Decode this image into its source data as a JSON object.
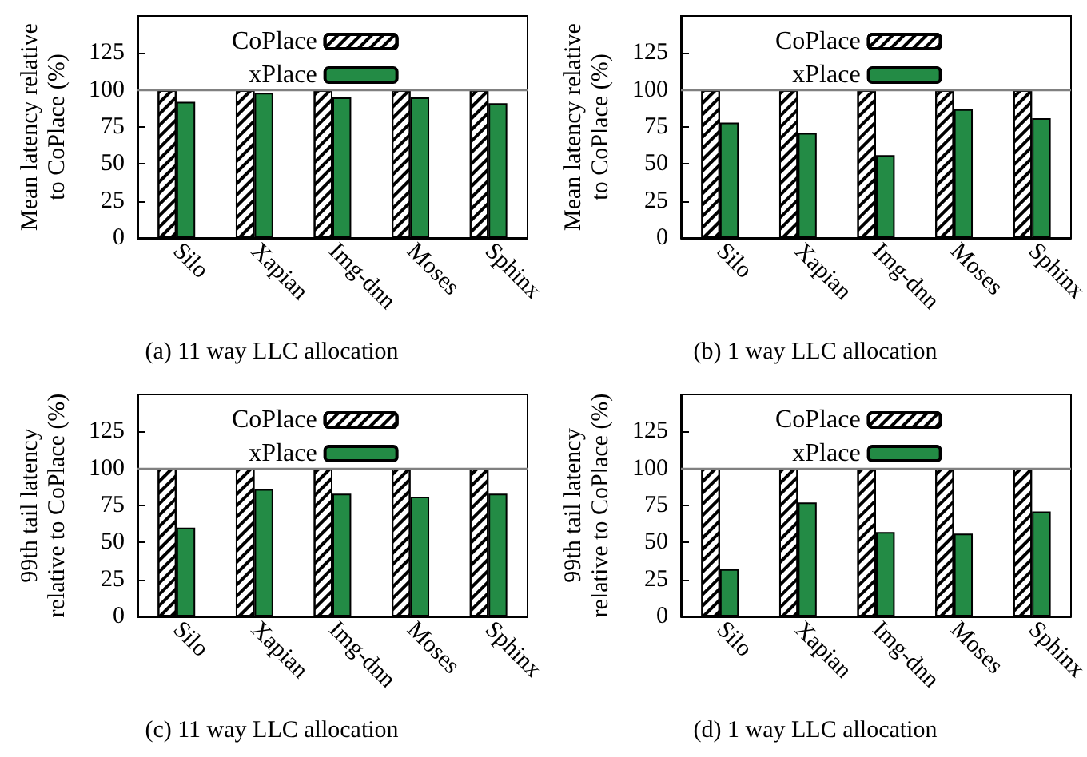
{
  "chart_data": [
    {
      "type": "bar",
      "title": "(a) 11 way LLC allocation",
      "ylabel": "Mean latency relative to CoPlace (%)",
      "categories": [
        "Silo",
        "Xapian",
        "Img-dnn",
        "Moses",
        "Sphinx"
      ],
      "series": [
        {
          "name": "CoPlace",
          "color": "#ffffff",
          "values": [
            100,
            100,
            100,
            100,
            100
          ]
        },
        {
          "name": "xPlace",
          "color": "#238b45",
          "values": [
            92,
            98,
            95,
            95,
            91
          ]
        }
      ],
      "ylim": [
        0,
        150
      ],
      "yticks": [
        0,
        25,
        50,
        75,
        100,
        125
      ],
      "ref_lines": [
        {
          "axis": "y",
          "value": 100,
          "color": "#808080"
        }
      ],
      "legend": "top",
      "grid": false
    },
    {
      "type": "bar",
      "title": "(b) 1 way LLC allocation",
      "ylabel": "Mean latency relative to CoPlace (%)",
      "categories": [
        "Silo",
        "Xapian",
        "Img-dnn",
        "Moses",
        "Sphinx"
      ],
      "series": [
        {
          "name": "CoPlace",
          "color": "#ffffff",
          "values": [
            100,
            100,
            100,
            100,
            100
          ]
        },
        {
          "name": "xPlace",
          "color": "#238b45",
          "values": [
            78,
            71,
            56,
            87,
            81
          ]
        }
      ],
      "ylim": [
        0,
        150
      ],
      "yticks": [
        0,
        25,
        50,
        75,
        100,
        125
      ],
      "ref_lines": [
        {
          "axis": "y",
          "value": 100,
          "color": "#808080"
        }
      ],
      "legend": "top",
      "grid": false
    },
    {
      "type": "bar",
      "title": "(c) 11 way LLC allocation",
      "ylabel": "99th tail latency relative to CoPlace (%)",
      "categories": [
        "Silo",
        "Xapian",
        "Img-dnn",
        "Moses",
        "Sphinx"
      ],
      "series": [
        {
          "name": "CoPlace",
          "color": "#ffffff",
          "values": [
            100,
            100,
            100,
            100,
            100
          ]
        },
        {
          "name": "xPlace",
          "color": "#238b45",
          "values": [
            60,
            86,
            83,
            81,
            83
          ]
        }
      ],
      "ylim": [
        0,
        150
      ],
      "yticks": [
        0,
        25,
        50,
        75,
        100,
        125
      ],
      "ref_lines": [
        {
          "axis": "y",
          "value": 100,
          "color": "#808080"
        }
      ],
      "legend": "top",
      "grid": false
    },
    {
      "type": "bar",
      "title": "(d) 1 way LLC allocation",
      "ylabel": "99th tail latency relative to CoPlace (%)",
      "categories": [
        "Silo",
        "Xapian",
        "Img-dnn",
        "Moses",
        "Sphinx"
      ],
      "series": [
        {
          "name": "CoPlace",
          "color": "#ffffff",
          "values": [
            100,
            100,
            100,
            100,
            100
          ]
        },
        {
          "name": "xPlace",
          "color": "#238b45",
          "values": [
            32,
            77,
            57,
            56,
            71
          ]
        }
      ],
      "ylim": [
        0,
        150
      ],
      "yticks": [
        0,
        25,
        50,
        75,
        100,
        125
      ],
      "ref_lines": [
        {
          "axis": "y",
          "value": 100,
          "color": "#808080"
        }
      ],
      "legend": "top",
      "grid": false
    }
  ]
}
